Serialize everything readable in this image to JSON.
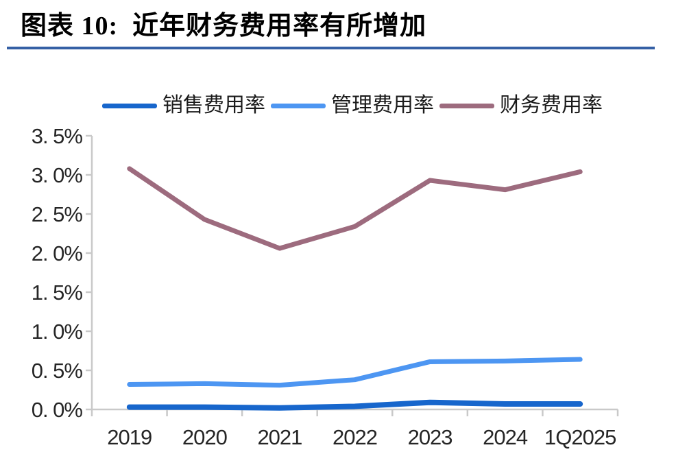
{
  "header": {
    "title": "图表 10:  近年财务费用率有所增加"
  },
  "colors": {
    "title_rule": "#3560A5",
    "axis": "#C9C9C9",
    "tick_text": "#262626"
  },
  "chart_data": {
    "type": "line",
    "categories": [
      "2019",
      "2020",
      "2021",
      "2022",
      "2023",
      "2024",
      "1Q2025"
    ],
    "series": [
      {
        "name": "销售费用率",
        "color": "#1766CC",
        "values": [
          0.03,
          0.03,
          0.02,
          0.04,
          0.09,
          0.07,
          0.07
        ]
      },
      {
        "name": "管理费用率",
        "color": "#4D96F2",
        "values": [
          0.32,
          0.33,
          0.31,
          0.38,
          0.61,
          0.62,
          0.64
        ]
      },
      {
        "name": "财务费用率",
        "color": "#9D6B7E",
        "values": [
          3.08,
          2.43,
          2.06,
          2.34,
          2.93,
          2.81,
          3.04
        ]
      }
    ],
    "ylim": [
      0,
      3.5
    ],
    "ytick_step": 0.5,
    "ytick_labels_top_to_bottom": [
      "3. 5%",
      "3. 0%",
      "2. 5%",
      "2. 0%",
      "1. 5%",
      "1. 0%",
      "0. 5%",
      "0. 0%"
    ],
    "grid": false,
    "legend_position": "top"
  }
}
